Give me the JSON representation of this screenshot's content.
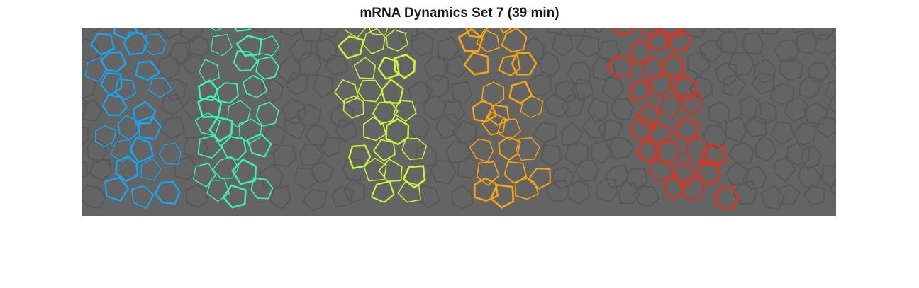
{
  "figure": {
    "title": "mRNA Dynamics Set 7 (39 min)"
  },
  "image": {
    "background_color": "#646464",
    "cell_edge_color": "#585858",
    "content": "microscopy-style tissue segmentation with five highlighted stripes of cells",
    "stripes": [
      {
        "id": "stripe-1",
        "color": "#1aa3ee"
      },
      {
        "id": "stripe-2",
        "color": "#3af2b8"
      },
      {
        "id": "stripe-3",
        "color": "#c8f53c"
      },
      {
        "id": "stripe-4",
        "color": "#f7a511"
      },
      {
        "id": "stripe-5",
        "color": "#f22a12"
      }
    ]
  }
}
